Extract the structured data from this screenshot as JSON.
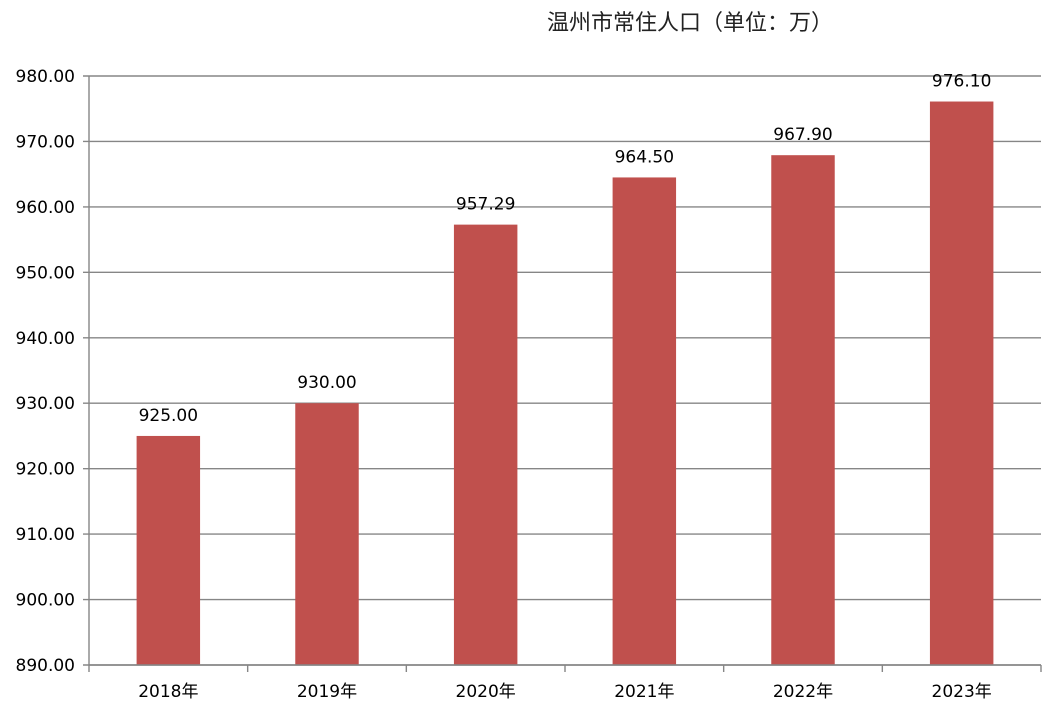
{
  "chart_data": {
    "type": "bar",
    "title": "温州市常住人口（单位：万）",
    "categories": [
      "2018年",
      "2019年",
      "2020年",
      "2021年",
      "2022年",
      "2023年"
    ],
    "series": [
      {
        "values": [
          925.0,
          930.0,
          957.29,
          964.5,
          967.9,
          976.1
        ]
      }
    ],
    "data_labels": [
      "925.00",
      "930.00",
      "957.29",
      "964.50",
      "967.90",
      "976.10"
    ],
    "y_ticks": [
      "890.00",
      "900.00",
      "910.00",
      "920.00",
      "930.00",
      "940.00",
      "950.00",
      "960.00",
      "970.00",
      "980.00"
    ],
    "ylim": [
      890,
      980
    ],
    "grid": true,
    "legend": "none",
    "bar_color": "#c0504d",
    "grid_color": "#868686"
  }
}
